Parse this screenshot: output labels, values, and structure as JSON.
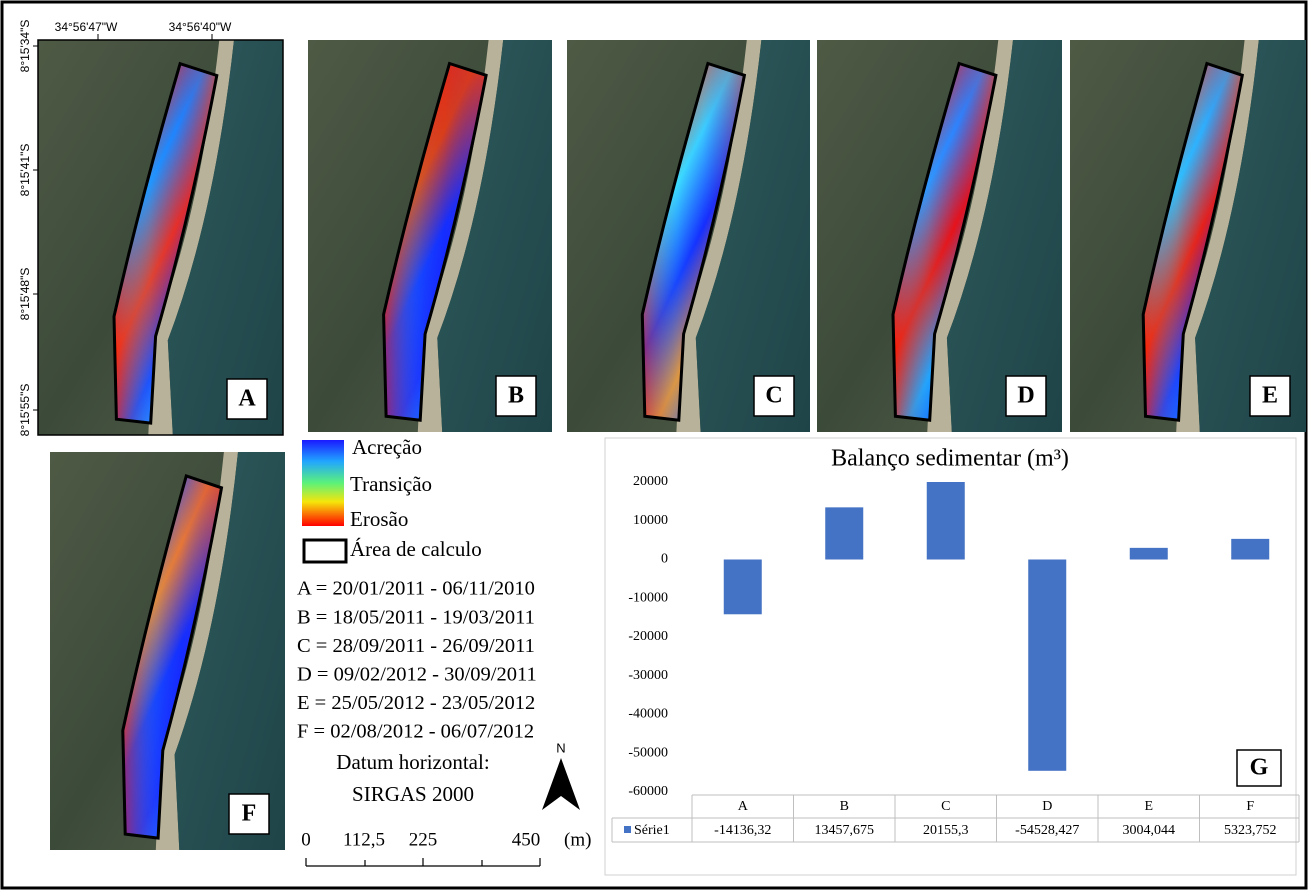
{
  "maps": {
    "x_labels": [
      "34°56'47\"W",
      "34°56'40\"W"
    ],
    "y_labels": [
      "8°15'34\"S",
      "8°15'41\"S",
      "8°15'48\"S",
      "8°15'55\"S"
    ],
    "panels": [
      "A",
      "B",
      "C",
      "D",
      "E",
      "F"
    ]
  },
  "legend": {
    "items": [
      "Acreção",
      "Transição",
      "Erosão"
    ],
    "area": "Área de calculo"
  },
  "periods": [
    "A = 20/01/2011 - 06/11/2010",
    "B = 18/05/2011 - 19/03/2011",
    "C = 28/09/2011 - 26/09/2011",
    "D = 09/02/2012 - 30/09/2011",
    "E = 25/05/2012 - 23/05/2012",
    "F = 02/08/2012 - 06/07/2012"
  ],
  "datum": [
    "Datum horizontal:",
    "SIRGAS 2000"
  ],
  "north": "N",
  "scale": {
    "labels": [
      "0",
      "112,5",
      "225",
      "450"
    ],
    "unit": "(m)"
  },
  "chart_data": {
    "type": "bar",
    "title": "Balanço sedimentar (m³)",
    "panel_label": "G",
    "categories": [
      "A",
      "B",
      "C",
      "D",
      "E",
      "F"
    ],
    "series": [
      {
        "name": "Série1",
        "color": "#4472c4",
        "values": [
          -14136.32,
          13457.675,
          20155.3,
          -54528.427,
          3004.044,
          5323.752
        ],
        "value_labels": [
          "-14136,32",
          "13457,675",
          "20155,3",
          "-54528,427",
          "3004,044",
          "5323,752"
        ]
      }
    ],
    "ylim": [
      -60000,
      20000
    ],
    "yticks": [
      -60000,
      -50000,
      -40000,
      -30000,
      -20000,
      -10000,
      0,
      10000,
      20000
    ],
    "grid": false
  }
}
